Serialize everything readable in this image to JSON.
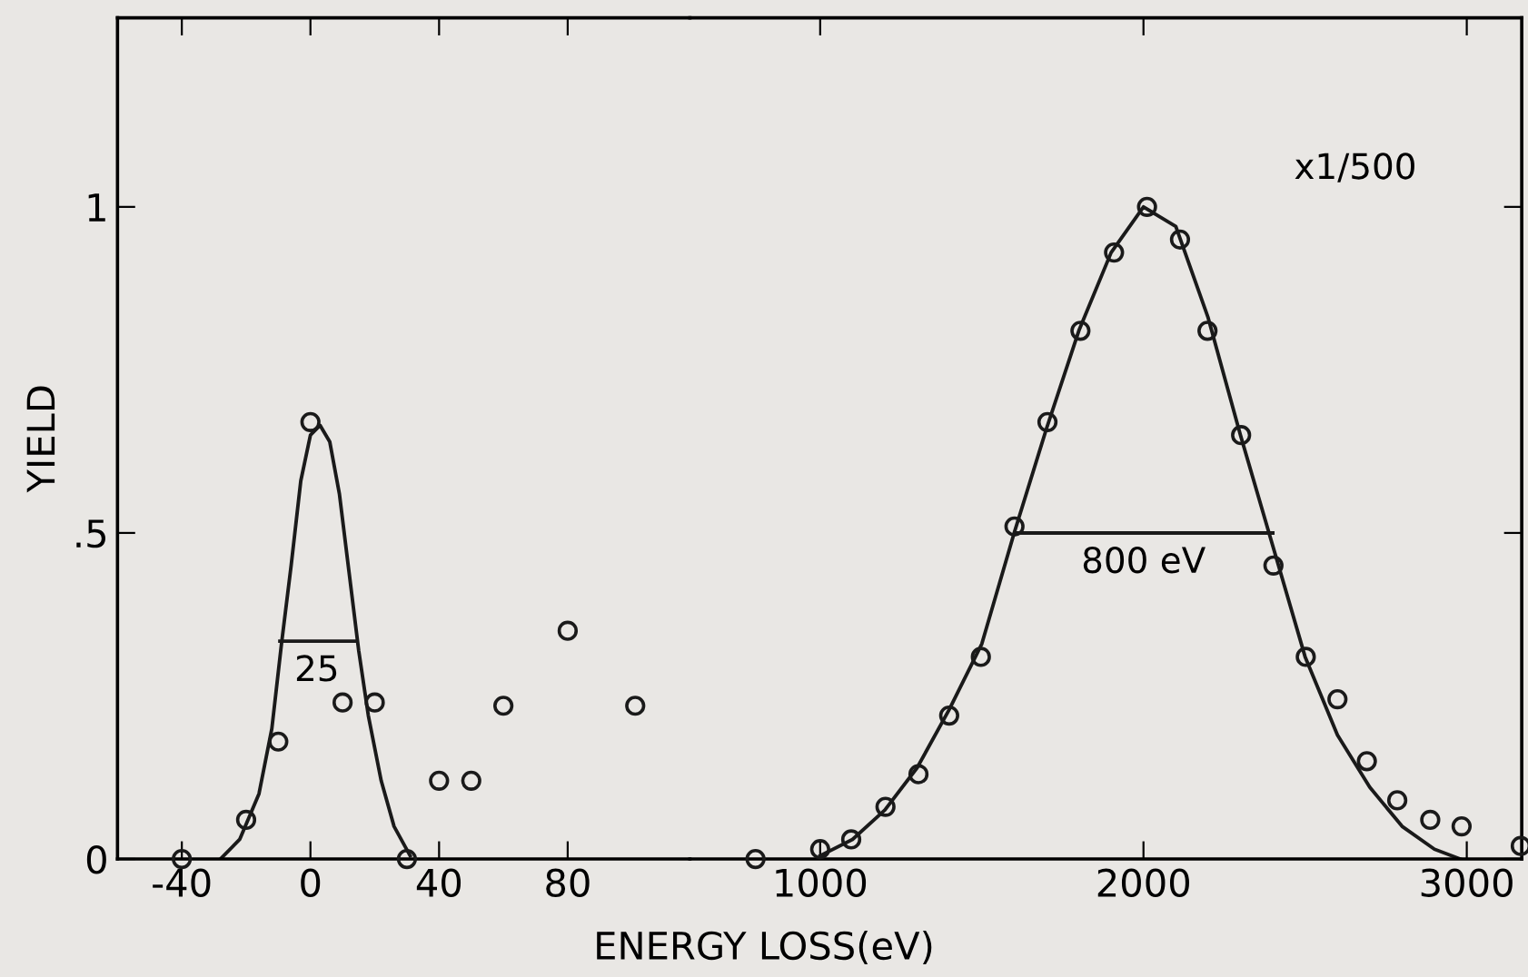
{
  "chart_data": [
    {
      "type": "scatter",
      "ylabel": "YIELD",
      "xlabel": "ENERGY LOSS(eV)",
      "xlim": [
        -60,
        118
      ],
      "ylim": [
        0,
        1.29
      ],
      "xticks": [
        -40,
        0,
        40,
        80
      ],
      "yticks": [
        0,
        {
          "value": 0.5,
          "label": ".5"
        },
        1
      ],
      "grid": false,
      "annotations": [
        {
          "text": "25",
          "x": 2,
          "y": 0.334
        }
      ],
      "series": [
        {
          "marker": "circle",
          "color": "#1a1a1a",
          "x": [
            -40,
            -20,
            -10,
            0,
            10,
            20,
            30,
            40,
            50,
            60,
            80,
            101
          ],
          "values": [
            0,
            0.06,
            0.18,
            0.67,
            0.24,
            0.24,
            0,
            0.12,
            0.12,
            0.235,
            0.35,
            0.235
          ]
        },
        {
          "type": "line",
          "color": "#1a1a1a",
          "x": [
            -28,
            -22,
            -16,
            -12,
            -9,
            -6,
            -3,
            0,
            3,
            6,
            9,
            12,
            15,
            18,
            22,
            26,
            31
          ],
          "values": [
            0,
            0.03,
            0.1,
            0.2,
            0.33,
            0.45,
            0.58,
            0.65,
            0.665,
            0.64,
            0.56,
            0.44,
            0.32,
            0.22,
            0.12,
            0.05,
            0.005
          ]
        },
        {
          "type": "line",
          "color": "#1a1a1a",
          "x": [
            -9.5,
            14
          ],
          "values": [
            0.334,
            0.334
          ]
        }
      ]
    },
    {
      "type": "scatter",
      "xlim": [
        597,
        3170
      ],
      "ylim": [
        0,
        1.29
      ],
      "xticks": [
        1000,
        2000,
        3000
      ],
      "yticks": [
        0,
        0.5,
        1
      ],
      "tick_labels": "x",
      "grid": false,
      "annotations": [
        "x1/500",
        {
          "text": "800 eV",
          "x": 2000,
          "y": 0.5
        }
      ],
      "series": [
        {
          "marker": "circle",
          "color": "#1a1a1a",
          "x": [
            800,
            1000,
            1096,
            1202,
            1304,
            1399,
            1497,
            1601,
            1703,
            1805,
            1909,
            2011,
            2113,
            2198,
            2302,
            2402,
            2502,
            2600,
            2691,
            2785,
            2887,
            2984,
            3167
          ],
          "values": [
            0,
            0.015,
            0.03,
            0.08,
            0.13,
            0.22,
            0.31,
            0.51,
            0.67,
            0.81,
            0.93,
            1.0,
            0.95,
            0.81,
            0.65,
            0.45,
            0.31,
            0.245,
            0.15,
            0.09,
            0.06,
            0.05,
            0.02
          ]
        },
        {
          "type": "line",
          "color": "#1a1a1a",
          "x": [
            1000,
            1100,
            1200,
            1300,
            1400,
            1500,
            1600,
            1700,
            1800,
            1900,
            2000,
            2100,
            2200,
            2300,
            2400,
            2500,
            2600,
            2700,
            2800,
            2900,
            2980
          ],
          "values": [
            0.005,
            0.03,
            0.075,
            0.14,
            0.23,
            0.33,
            0.5,
            0.66,
            0.81,
            0.93,
            1.0,
            0.97,
            0.83,
            0.65,
            0.48,
            0.31,
            0.19,
            0.11,
            0.05,
            0.015,
            0
          ]
        },
        {
          "type": "line",
          "color": "#1a1a1a",
          "x": [
            1610,
            2400
          ],
          "values": [
            0.5,
            0.5
          ]
        }
      ]
    }
  ]
}
